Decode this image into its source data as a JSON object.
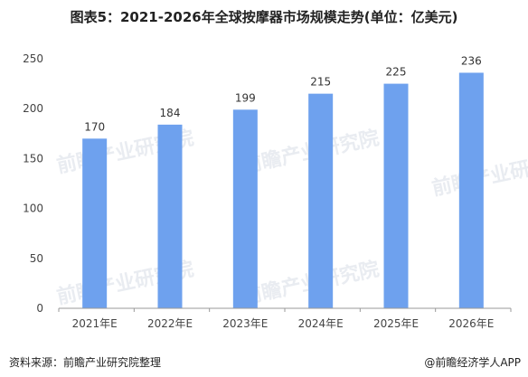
{
  "title": "图表5：2021-2026年全球按摩器市场规模走势(单位：亿美元)",
  "source": "资料来源：前瞻产业研究院整理",
  "brand": "@前瞻经济学人APP",
  "watermark": "前瞻产业研究院",
  "colors": {
    "bar": "#6ea1ee",
    "grid": "#e6e6e6",
    "axis": "#999999"
  },
  "chart_data": {
    "type": "bar",
    "categories": [
      "2021年E",
      "2022年E",
      "2023年E",
      "2024年E",
      "2025年E",
      "2026年E"
    ],
    "values": [
      170,
      184,
      199,
      215,
      225,
      236
    ],
    "title": "",
    "xlabel": "",
    "ylabel": "",
    "ylim": [
      0,
      250
    ],
    "yticks": [
      0,
      50,
      100,
      150,
      200,
      250
    ],
    "grid": false,
    "data_labels": true
  }
}
